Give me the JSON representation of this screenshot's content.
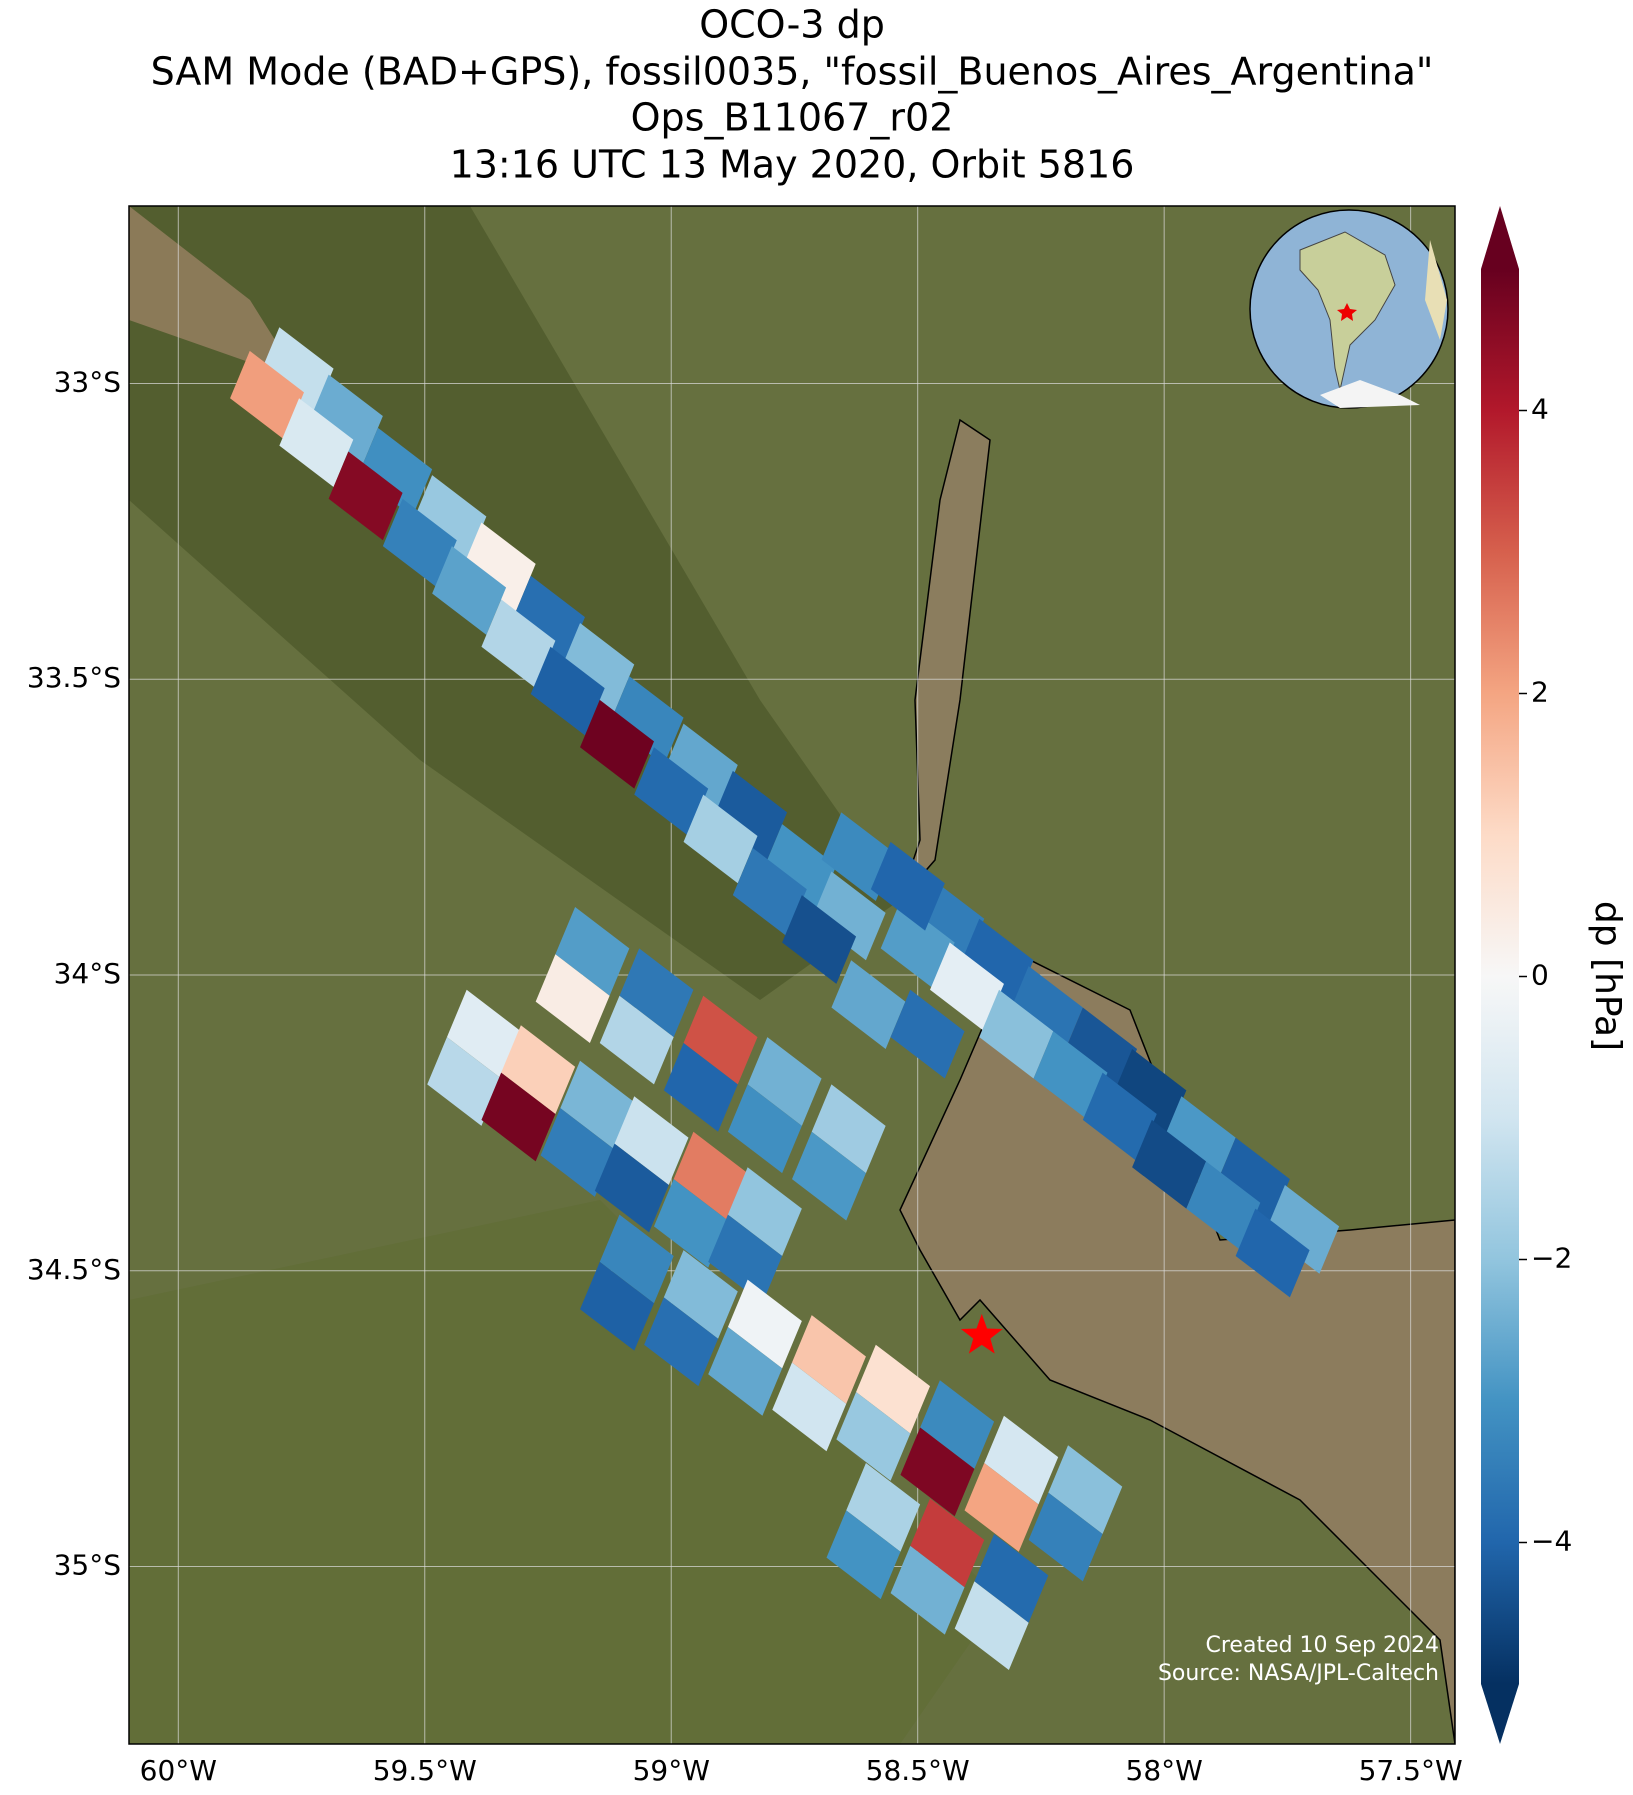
{
  "chart_data": {
    "type": "map",
    "title": [
      "OCO-3 dp",
      "SAM Mode (BAD+GPS), fossil0035, \"fossil_Buenos_Aires_Argentina\"",
      "Ops_B11067_r02",
      "13:16 UTC 13 May 2020, Orbit 5816"
    ],
    "xlim": [
      -60.1,
      -57.41
    ],
    "ylim": [
      -35.3,
      -32.7
    ],
    "xticks": [
      {
        "value": -60,
        "label": "60°W"
      },
      {
        "value": -59.5,
        "label": "59.5°W"
      },
      {
        "value": -59,
        "label": "59°W"
      },
      {
        "value": -58.5,
        "label": "58.5°W"
      },
      {
        "value": -58,
        "label": "58°W"
      },
      {
        "value": -57.5,
        "label": "57.5°W"
      }
    ],
    "yticks": [
      {
        "value": -33,
        "label": "33°S"
      },
      {
        "value": -33.5,
        "label": "33.5°S"
      },
      {
        "value": -34,
        "label": "34°S"
      },
      {
        "value": -34.5,
        "label": "34.5°S"
      },
      {
        "value": -35,
        "label": "35°S"
      }
    ],
    "grid": true,
    "colorbar_label": "dp [hPa]",
    "colormap": "RdBu_r",
    "clim": [
      -5,
      5
    ],
    "colorbar_ticks": [
      {
        "value": -4,
        "label": "−4"
      },
      {
        "value": -2,
        "label": "−2"
      },
      0,
      2,
      4
    ],
    "site": [
      -58.37,
      -34.61
    ],
    "annotations": [
      "Created 10 Sep 2024",
      "Source: NASA/JPL-Caltech"
    ],
    "x": [
      -59.76,
      -59.82,
      -59.66,
      -59.72,
      -59.56,
      -59.62,
      -59.45,
      -59.51,
      -59.35,
      -59.41,
      -59.25,
      -59.31,
      -59.15,
      -59.21,
      -59.05,
      -59.11,
      -58.94,
      -59.0,
      -58.84,
      -58.9,
      -58.74,
      -58.8,
      -58.64,
      -58.7,
      -58.44,
      -58.5,
      -58.34,
      -58.4,
      -58.24,
      -58.3,
      -58.13,
      -58.19,
      -58.03,
      -58.09,
      -57.93,
      -57.99,
      -57.82,
      -57.88,
      -57.72,
      -57.78,
      -58.62,
      -58.52,
      -58.6,
      -58.48,
      -59.38,
      -59.42,
      -59.27,
      -59.31,
      -59.15,
      -59.19,
      -59.04,
      -59.08,
      -58.92,
      -58.96,
      -58.81,
      -58.85,
      -59.16,
      -59.2,
      -59.03,
      -59.07,
      -58.9,
      -58.94,
      -58.77,
      -58.81,
      -58.64,
      -58.68,
      -59.07,
      -59.11,
      -58.94,
      -58.98,
      -58.81,
      -58.85,
      -58.68,
      -58.72,
      -58.55,
      -58.59,
      -58.42,
      -58.46,
      -58.29,
      -58.33,
      -58.16,
      -58.2,
      -58.57,
      -58.61,
      -58.44,
      -58.48,
      -58.31,
      -58.35
    ],
    "y": [
      -32.98,
      -33.02,
      -33.06,
      -33.1,
      -33.15,
      -33.19,
      -33.23,
      -33.27,
      -33.31,
      -33.35,
      -33.4,
      -33.44,
      -33.48,
      -33.52,
      -33.57,
      -33.61,
      -33.65,
      -33.69,
      -33.73,
      -33.77,
      -33.82,
      -33.86,
      -33.9,
      -33.94,
      -33.91,
      -33.95,
      -33.98,
      -34.02,
      -34.06,
      -34.1,
      -34.13,
      -34.17,
      -34.2,
      -34.24,
      -34.28,
      -34.32,
      -34.35,
      -34.39,
      -34.43,
      -34.47,
      -33.8,
      -33.85,
      -34.05,
      -34.1,
      -34.1,
      -34.18,
      -34.16,
      -34.24,
      -34.22,
      -34.3,
      -34.28,
      -34.36,
      -34.34,
      -34.42,
      -34.4,
      -34.48,
      -33.96,
      -34.04,
      -34.03,
      -34.11,
      -34.11,
      -34.19,
      -34.18,
      -34.26,
      -34.26,
      -34.34,
      -34.48,
      -34.56,
      -34.54,
      -34.62,
      -34.59,
      -34.67,
      -34.65,
      -34.73,
      -34.7,
      -34.78,
      -34.76,
      -34.84,
      -34.82,
      -34.9,
      -34.87,
      -34.95,
      -34.9,
      -34.98,
      -34.96,
      -35.04,
      -35.02,
      -35.1
    ],
    "values": [
      -1.2,
      2.1,
      -2.5,
      -0.8,
      -3.1,
      4.6,
      -1.9,
      -3.4,
      0.3,
      -2.7,
      -3.8,
      -1.5,
      -2.2,
      -4.1,
      -3.3,
      4.9,
      -2.6,
      -3.9,
      -4.2,
      -1.7,
      -3.0,
      -3.6,
      -2.4,
      -4.4,
      -3.5,
      -2.8,
      -4.0,
      -0.5,
      -3.7,
      -2.1,
      -4.3,
      -3.0,
      -4.6,
      -3.9,
      -2.9,
      -4.5,
      -4.1,
      -3.3,
      -2.5,
      -4.0,
      -3.2,
      -4.0,
      -2.6,
      -3.8,
      -0.6,
      -1.4,
      1.2,
      4.8,
      -2.3,
      -3.5,
      -1.1,
      -4.2,
      2.6,
      -3.0,
      -2.0,
      -3.7,
      -2.8,
      0.4,
      -3.6,
      -1.5,
      3.2,
      -4.0,
      -2.4,
      -3.1,
      -1.8,
      -2.9,
      -3.3,
      -4.1,
      -2.2,
      -3.8,
      -0.2,
      -2.6,
      1.4,
      -1.0,
      0.8,
      -1.9,
      -3.2,
      4.7,
      -0.9,
      2.0,
      -2.1,
      -3.4,
      -1.6,
      -3.0,
      3.5,
      -2.4,
      -3.9,
      -1.2
    ]
  }
}
